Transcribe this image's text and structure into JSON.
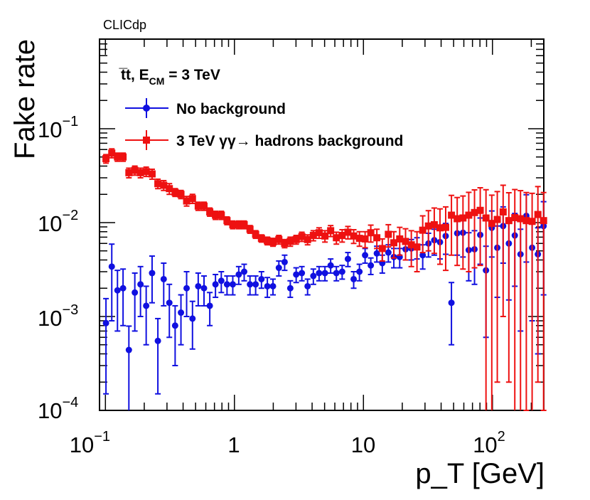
{
  "corner_label": "CLICdp",
  "chart_data": {
    "type": "scatter",
    "title": "",
    "xlabel": "p_T [GeV]",
    "ylabel": "Fake rate",
    "xscale": "log",
    "yscale": "log",
    "xlim": [
      0.09,
      250
    ],
    "ylim": [
      0.0001,
      0.9
    ],
    "x_ticks": [
      {
        "mantissa": "10",
        "exp": "−1"
      },
      {
        "mantissa": "1",
        "exp": ""
      },
      {
        "mantissa": "10",
        "exp": ""
      },
      {
        "mantissa": "10",
        "exp": "2"
      }
    ],
    "y_ticks": [
      {
        "mantissa": "10",
        "exp": "−4"
      },
      {
        "mantissa": "10",
        "exp": "−3"
      },
      {
        "mantissa": "10",
        "exp": "−2"
      },
      {
        "mantissa": "10",
        "exp": "−1"
      }
    ],
    "legend": {
      "header": "t̅t, E",
      "header_sub": "CM",
      "header_tail": " = 3 TeV",
      "position": "top-left"
    },
    "series": [
      {
        "name": "No background",
        "color": "#1010e0",
        "marker": "circle",
        "x": [
          0.101,
          0.112,
          0.124,
          0.137,
          0.152,
          0.169,
          0.187,
          0.207,
          0.23,
          0.255,
          0.283,
          0.313,
          0.347,
          0.385,
          0.426,
          0.473,
          0.524,
          0.581,
          0.644,
          0.713,
          0.791,
          0.876,
          0.971,
          1.08,
          1.19,
          1.32,
          1.46,
          1.62,
          1.8,
          1.99,
          2.21,
          2.45,
          2.71,
          3.01,
          3.33,
          3.69,
          4.09,
          4.53,
          5.03,
          5.57,
          6.17,
          6.84,
          7.58,
          8.4,
          9.31,
          10.3,
          11.4,
          12.7,
          14.0,
          15.6,
          17.2,
          19.1,
          21.2,
          23.5,
          26.0,
          28.8,
          31.9,
          35.4,
          39.2,
          43.4,
          48.1,
          53.3,
          59.1,
          65.5,
          72.6,
          80.4,
          89.1,
          98.8,
          109,
          121,
          134,
          149,
          165,
          183,
          203,
          225,
          249
        ],
        "y": [
          0.00085,
          0.0034,
          0.0019,
          0.002,
          0.00044,
          0.0018,
          0.0022,
          0.0013,
          0.0029,
          0.00055,
          0.0025,
          0.0014,
          0.0008,
          0.0011,
          0.002,
          0.00095,
          0.0021,
          0.002,
          0.0013,
          0.0022,
          0.0024,
          0.0022,
          0.0022,
          0.0028,
          0.003,
          0.0022,
          0.0022,
          0.0025,
          0.0021,
          0.0021,
          0.0033,
          0.0038,
          0.002,
          0.0028,
          0.0029,
          0.0021,
          0.0027,
          0.0029,
          0.0029,
          0.0035,
          0.0029,
          0.003,
          0.0041,
          0.0025,
          0.003,
          0.0045,
          0.0035,
          0.0047,
          0.0037,
          0.0048,
          0.0043,
          0.0043,
          0.0052,
          0.0053,
          0.0055,
          0.0045,
          0.006,
          0.0065,
          0.0062,
          0.0072,
          0.0014,
          0.0077,
          0.0078,
          0.0051,
          0.0052,
          0.0074,
          0.0031,
          0.0088,
          0.0054,
          0.0092,
          0.006,
          0.0073,
          0.0046,
          0.0118,
          0.0054,
          0.0046,
          0.0092
        ],
        "y_err": [
          0.0007,
          0.0025,
          0.0012,
          0.0012,
          0.00035,
          0.0011,
          0.0012,
          0.0008,
          0.0015,
          0.0004,
          0.0012,
          0.0008,
          0.0005,
          0.0006,
          0.001,
          0.0005,
          0.0008,
          0.0007,
          0.0005,
          0.0006,
          0.0006,
          0.0005,
          0.0005,
          0.0006,
          0.0006,
          0.0005,
          0.0005,
          0.0005,
          0.0005,
          0.0004,
          0.0006,
          0.0007,
          0.0004,
          0.0005,
          0.0005,
          0.0004,
          0.0005,
          0.0005,
          0.0005,
          0.0006,
          0.0005,
          0.0005,
          0.0007,
          0.0005,
          0.0006,
          0.0008,
          0.0007,
          0.0009,
          0.0008,
          0.001,
          0.001,
          0.001,
          0.0012,
          0.0013,
          0.0014,
          0.0013,
          0.0017,
          0.002,
          0.0021,
          0.0026,
          0.0009,
          0.0032,
          0.0035,
          0.0027,
          0.003,
          0.0038,
          0.0025,
          0.0045,
          0.0038,
          0.0055,
          0.0045,
          0.0052,
          0.0039,
          0.008,
          0.0045,
          0.0042,
          0.0075
        ]
      },
      {
        "name": "3 TeV  γγ→ hadrons background",
        "color": "#ee1111",
        "marker": "square",
        "x": [
          0.101,
          0.112,
          0.124,
          0.137,
          0.152,
          0.169,
          0.187,
          0.207,
          0.23,
          0.255,
          0.283,
          0.313,
          0.347,
          0.385,
          0.426,
          0.473,
          0.524,
          0.581,
          0.644,
          0.713,
          0.791,
          0.876,
          0.971,
          1.08,
          1.19,
          1.32,
          1.46,
          1.62,
          1.8,
          1.99,
          2.21,
          2.45,
          2.71,
          3.01,
          3.33,
          3.69,
          4.09,
          4.53,
          5.03,
          5.57,
          6.17,
          6.84,
          7.58,
          8.4,
          9.31,
          10.3,
          11.4,
          12.7,
          14.0,
          15.6,
          17.2,
          19.1,
          21.2,
          23.5,
          26.0,
          28.8,
          31.9,
          35.4,
          39.2,
          43.4,
          48.1,
          53.3,
          59.1,
          65.5,
          72.6,
          80.4,
          89.1,
          98.8,
          109,
          121,
          134,
          149,
          165,
          183,
          203,
          225,
          249
        ],
        "y": [
          0.048,
          0.055,
          0.05,
          0.05,
          0.034,
          0.036,
          0.034,
          0.035,
          0.033,
          0.026,
          0.025,
          0.023,
          0.021,
          0.02,
          0.017,
          0.018,
          0.015,
          0.015,
          0.013,
          0.012,
          0.012,
          0.0105,
          0.0095,
          0.0095,
          0.0095,
          0.0085,
          0.0075,
          0.0068,
          0.0064,
          0.0062,
          0.0066,
          0.006,
          0.0063,
          0.0066,
          0.0071,
          0.0066,
          0.0073,
          0.0078,
          0.0072,
          0.0082,
          0.0069,
          0.0073,
          0.0079,
          0.0072,
          0.0068,
          0.0067,
          0.0078,
          0.0069,
          0.0053,
          0.0075,
          0.0061,
          0.0067,
          0.0063,
          0.0058,
          0.0055,
          0.0083,
          0.0092,
          0.0095,
          0.0088,
          0.0089,
          0.012,
          0.011,
          0.0112,
          0.012,
          0.0128,
          0.0135,
          0.0112,
          0.0098,
          0.0108,
          0.013,
          0.0105,
          0.0113,
          0.011,
          0.0105,
          0.0103,
          0.0122,
          0.0105
        ],
        "y_err": [
          0.005,
          0.006,
          0.005,
          0.005,
          0.004,
          0.004,
          0.004,
          0.004,
          0.004,
          0.003,
          0.003,
          0.003,
          0.002,
          0.002,
          0.002,
          0.002,
          0.0015,
          0.0015,
          0.0013,
          0.0012,
          0.0012,
          0.001,
          0.0009,
          0.0009,
          0.0009,
          0.0008,
          0.0007,
          0.0006,
          0.0006,
          0.0006,
          0.0007,
          0.0006,
          0.0007,
          0.0007,
          0.0008,
          0.0008,
          0.0009,
          0.001,
          0.001,
          0.0011,
          0.001,
          0.0011,
          0.0012,
          0.0012,
          0.0012,
          0.0013,
          0.0016,
          0.0016,
          0.0014,
          0.002,
          0.0019,
          0.0022,
          0.0023,
          0.0024,
          0.0025,
          0.0035,
          0.0042,
          0.0048,
          0.0052,
          0.0058,
          0.0075,
          0.0075,
          0.008,
          0.009,
          0.0095,
          0.01,
          0.0112,
          0.0098,
          0.0106,
          0.012,
          0.0103,
          0.0112,
          0.0109,
          0.0104,
          0.0102,
          0.012,
          0.0104
        ]
      }
    ]
  }
}
